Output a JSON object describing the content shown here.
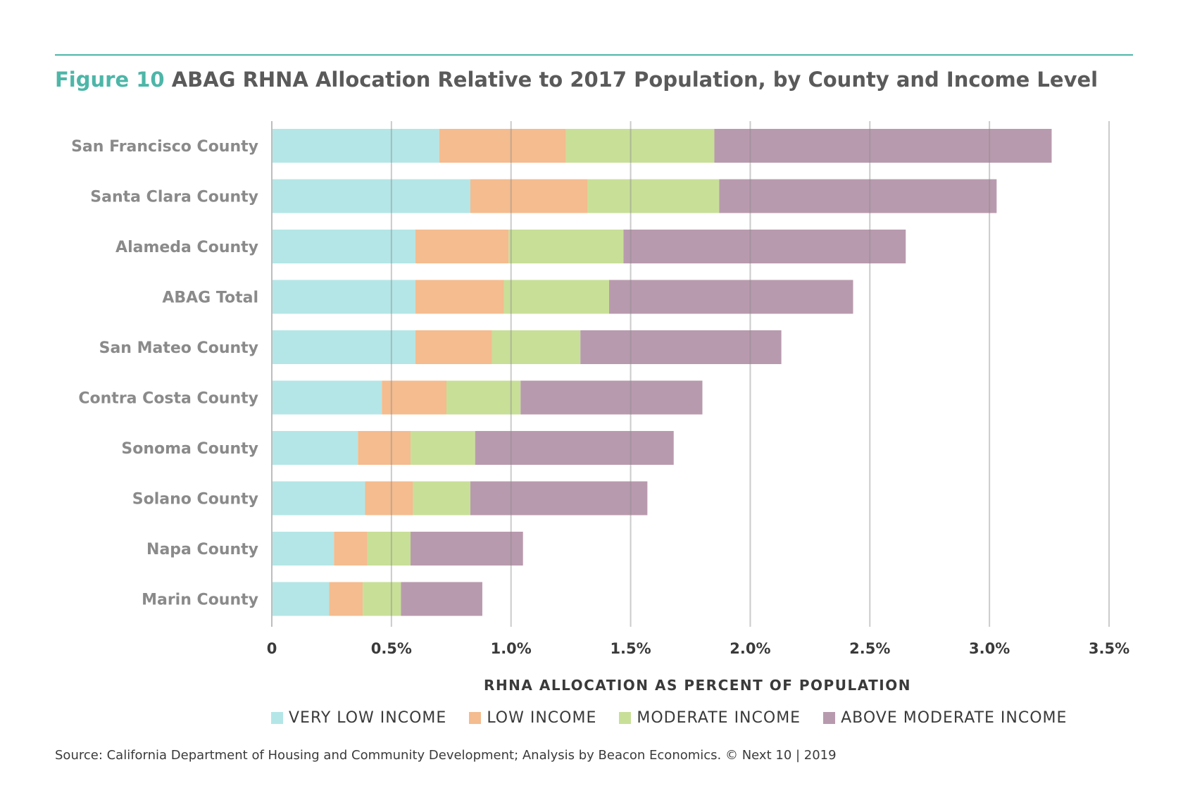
{
  "figure": {
    "label": "Figure 10",
    "title": "ABAG RHNA Allocation Relative to 2017 Population, by County and Income Level"
  },
  "source": "Source: California Department of Housing and Community Development; Analysis by Beacon Economics. © Next 10 | 2019",
  "colors": {
    "accent": "#4db6a8",
    "very_low": "#b4e6e7",
    "low": "#f4bc8f",
    "moderate": "#c8df98",
    "above_moderate": "#b89aae"
  },
  "chart_data": {
    "type": "bar",
    "orientation": "horizontal",
    "stacked": true,
    "title": "ABAG RHNA Allocation Relative to 2017 Population, by County and Income Level",
    "xlabel": "RHNA ALLOCATION AS PERCENT OF POPULATION",
    "ylabel": "",
    "xlim": [
      0,
      3.5
    ],
    "xticks": [
      0,
      0.5,
      1.0,
      1.5,
      2.0,
      2.5,
      3.0,
      3.5
    ],
    "xtick_labels": [
      "0",
      "0.5%",
      "1.0%",
      "1.5%",
      "2.0%",
      "2.5%",
      "3.0%",
      "3.5%"
    ],
    "grid": true,
    "legend_position": "bottom",
    "categories": [
      "San Francisco County",
      "Santa Clara County",
      "Alameda County",
      "ABAG Total",
      "San Mateo County",
      "Contra Costa County",
      "Sonoma County",
      "Solano County",
      "Napa County",
      "Marin County"
    ],
    "series": [
      {
        "name": "VERY LOW INCOME",
        "color": "#b4e6e7",
        "values": [
          0.7,
          0.83,
          0.6,
          0.6,
          0.6,
          0.46,
          0.36,
          0.39,
          0.26,
          0.24
        ]
      },
      {
        "name": "LOW INCOME",
        "color": "#f4bc8f",
        "values": [
          0.53,
          0.49,
          0.39,
          0.37,
          0.32,
          0.27,
          0.22,
          0.2,
          0.14,
          0.14
        ]
      },
      {
        "name": "MODERATE INCOME",
        "color": "#c8df98",
        "values": [
          0.62,
          0.55,
          0.48,
          0.44,
          0.37,
          0.31,
          0.27,
          0.24,
          0.18,
          0.16
        ]
      },
      {
        "name": "ABOVE MODERATE INCOME",
        "color": "#b89aae",
        "values": [
          1.41,
          1.16,
          1.18,
          1.02,
          0.84,
          0.76,
          0.83,
          0.74,
          0.47,
          0.34
        ]
      }
    ]
  }
}
